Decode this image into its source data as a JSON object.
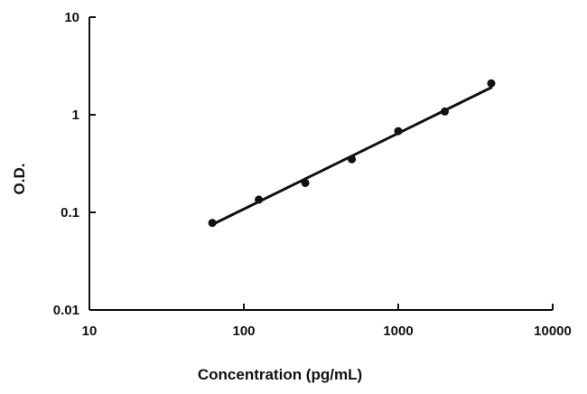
{
  "chart_data": {
    "type": "scatter",
    "title": "",
    "xlabel": "Concentration (pg/mL)",
    "ylabel": "O.D.",
    "xscale": "log",
    "yscale": "log",
    "xlim": [
      10,
      10000
    ],
    "ylim": [
      0.01,
      10
    ],
    "grid": false,
    "legend": "none",
    "x_ticks": [
      10,
      100,
      1000,
      10000
    ],
    "x_tick_labels": [
      "10",
      "100",
      "1000",
      "10000"
    ],
    "y_ticks": [
      0.01,
      0.1,
      1,
      10
    ],
    "y_tick_labels": [
      "0.01",
      "0.1",
      "1",
      "10"
    ],
    "series": [
      {
        "points": [
          {
            "x": 62.5,
            "y": 0.078
          },
          {
            "x": 125,
            "y": 0.135
          },
          {
            "x": 250,
            "y": 0.2
          },
          {
            "x": 500,
            "y": 0.35
          },
          {
            "x": 1000,
            "y": 0.68
          },
          {
            "x": 2000,
            "y": 1.08
          },
          {
            "x": 4000,
            "y": 2.1
          }
        ],
        "trendline": {
          "x": [
            62.5,
            4000
          ],
          "y": [
            0.075,
            1.9
          ]
        }
      }
    ],
    "colors": {
      "marks": "#111111"
    }
  }
}
